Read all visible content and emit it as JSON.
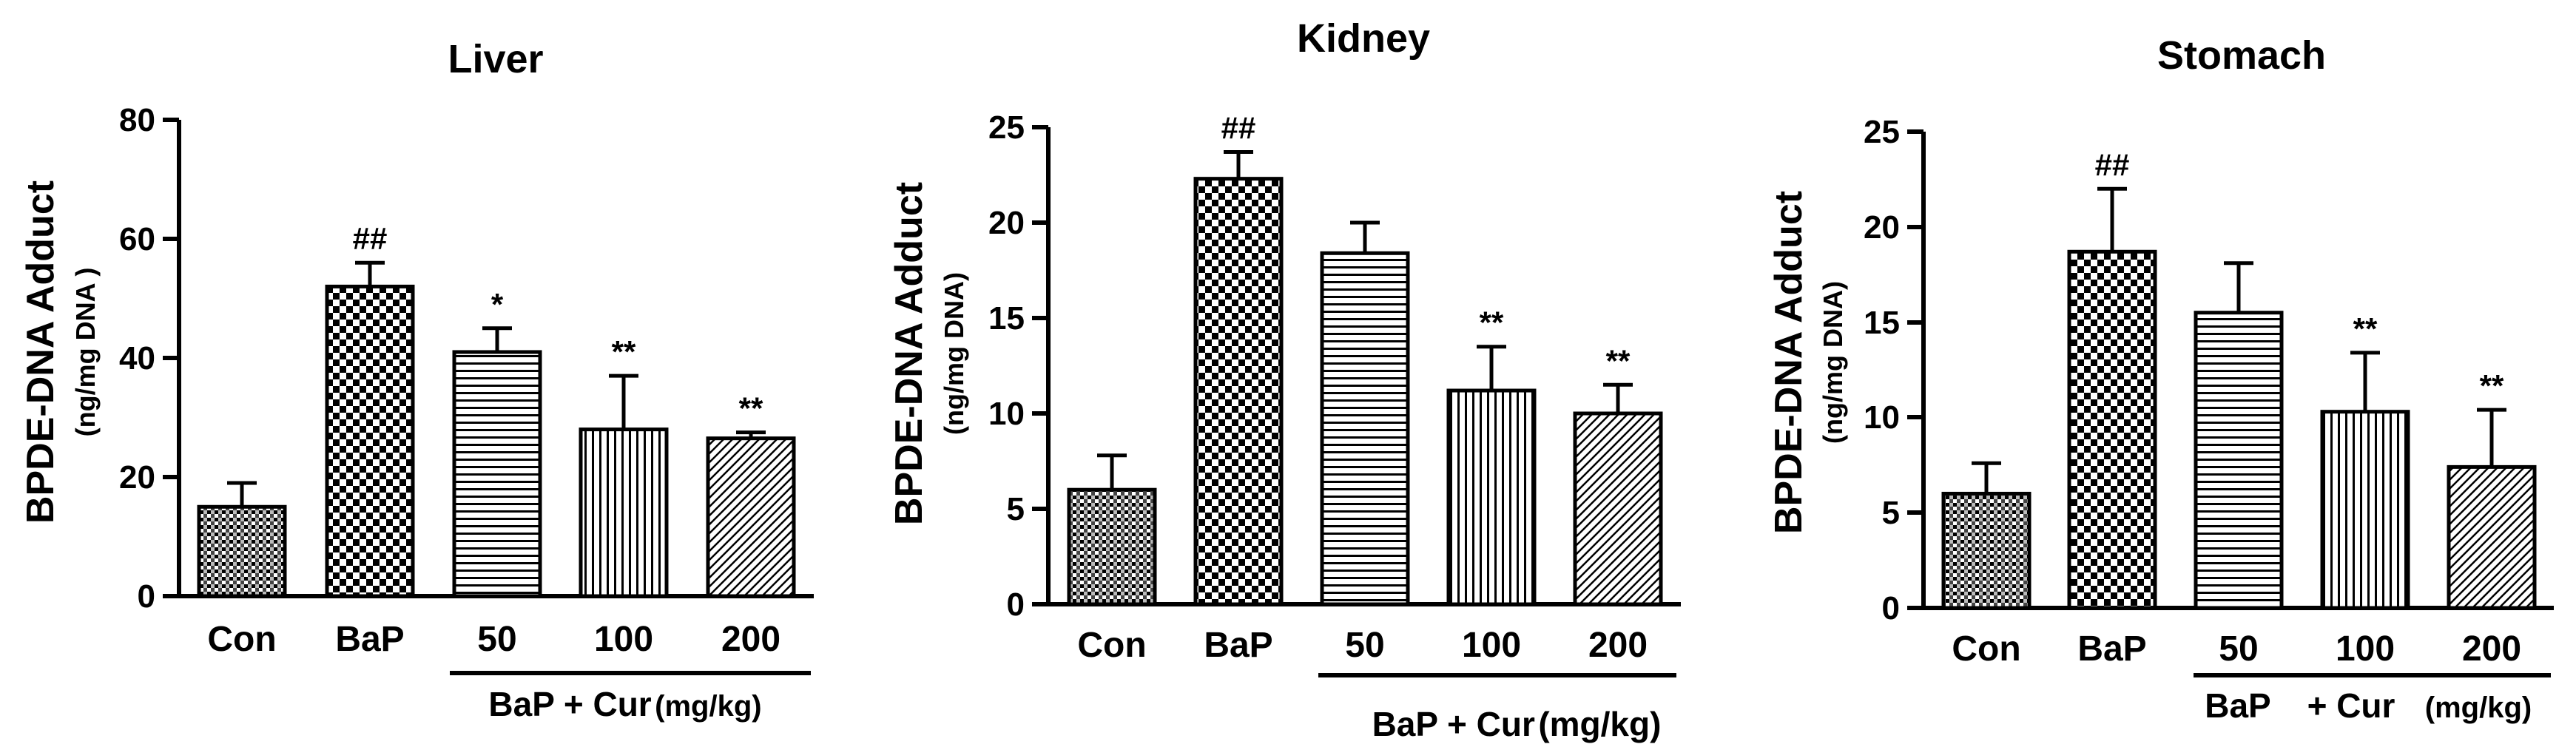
{
  "chart_data": [
    {
      "type": "bar",
      "title": "Liver",
      "ylabel": "BPDE-DNA Adduct",
      "ylabel_unit": "(ng/mg DNA )",
      "ylim": [
        0,
        80
      ],
      "yticks": [
        0,
        20,
        40,
        60,
        80
      ],
      "categories": [
        "Con",
        "BaP",
        "50",
        "100",
        "200"
      ],
      "values": [
        15,
        52,
        41,
        28,
        26.5
      ],
      "errors": [
        4,
        4,
        4,
        9,
        1
      ],
      "significance": [
        "",
        "##",
        "*",
        "**",
        "**"
      ],
      "group_label": {
        "main": "BaP + Cur",
        "unit": "(mg/kg)"
      }
    },
    {
      "type": "bar",
      "title": "Kidney",
      "ylabel": "BPDE-DNA Adduct",
      "ylabel_unit": "(ng/mg DNA)",
      "ylim": [
        0,
        25
      ],
      "yticks": [
        0,
        5,
        10,
        15,
        20,
        25
      ],
      "categories": [
        "Con",
        "BaP",
        "50",
        "100",
        "200"
      ],
      "values": [
        6,
        22.3,
        18.4,
        11.2,
        10
      ],
      "errors": [
        1.8,
        1.4,
        1.6,
        2.3,
        1.5
      ],
      "significance": [
        "",
        "##",
        "",
        "**",
        "**"
      ],
      "group_label": {
        "main": "BaP + Cur",
        "unit": "(mg/kg)"
      }
    },
    {
      "type": "bar",
      "title": "Stomach",
      "ylabel": "BPDE-DNA Adduct",
      "ylabel_unit": "(ng/mg DNA)",
      "ylim": [
        0,
        25
      ],
      "yticks": [
        0,
        5,
        10,
        15,
        20,
        25
      ],
      "categories": [
        "Con",
        "BaP",
        "50",
        "100",
        "200"
      ],
      "values": [
        6,
        18.7,
        15.5,
        10.3,
        7.4
      ],
      "errors": [
        1.6,
        3.3,
        2.6,
        3.1,
        3
      ],
      "significance": [
        "",
        "##",
        "",
        "**",
        "**"
      ],
      "group_label": {
        "main": "BaP",
        "main2": "+ Cur",
        "unit": "(mg/kg)"
      }
    }
  ],
  "colors": {
    "ink": "#000000",
    "background": "#ffffff"
  },
  "patterns": [
    "dense-crosshatch",
    "checkerboard",
    "horizontal-lines",
    "vertical-lines",
    "diagonal-lines"
  ]
}
